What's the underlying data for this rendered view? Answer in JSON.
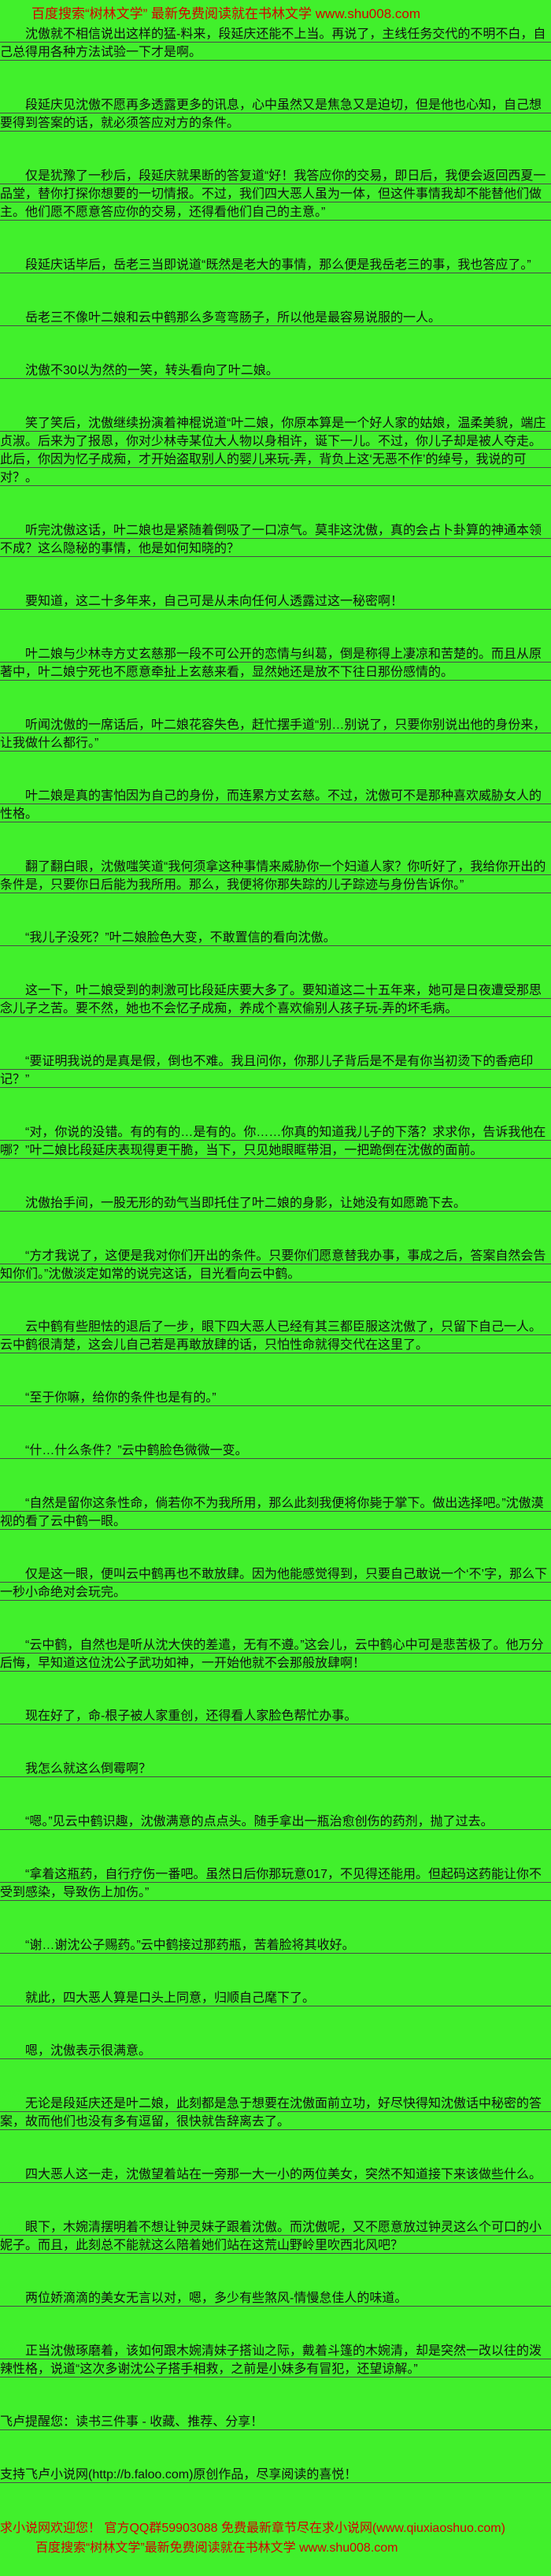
{
  "colors": {
    "background": "#41f02c",
    "promo_red": "#d40000",
    "body_text": "#111111",
    "underline": "#4a4a4a"
  },
  "header": {
    "text": "百度搜索“树林文学” 最新免费阅读就在书林文学 www.shu008.com"
  },
  "content": {
    "paragraphs": [
      "沈傲就不相信说出这样的猛-料来，段延庆还能不上当。再说了，主线任务交代的不明不白，自己总得用各种方法试验一下才是啊。",
      "段延庆见沈傲不愿再多透露更多的讯息，心中虽然又是焦急又是迫切，但是他也心知，自己想要得到答案的话，就必须答应对方的条件。",
      "仅是犹豫了一秒后，段延庆就果断的答复道“好！我答应你的交易，即日后，我便会返回西夏一品堂，替你打探你想要的一切情报。不过，我们四大恶人虽为一体，但这件事情我却不能替他们做主。他们愿不愿意答应你的交易，还得看他们自己的主意。”",
      "段延庆话毕后，岳老三当即说道“既然是老大的事情，那么便是我岳老三的事，我也答应了。”",
      "岳老三不像叶二娘和云中鹤那么多弯弯肠子，所以他是最容易说服的一人。",
      "沈傲不30以为然的一笑，转头看向了叶二娘。",
      "笑了笑后，沈傲继续扮演着神棍说道“叶二娘，你原本算是一个好人家的姑娘，温柔美貌，端庄贞淑。后来为了报恩，你对少林寺某位大人物以身相许，诞下一儿。不过，你儿子却是被人夺走。此后，你因为忆子成痴，才开始盗取别人的婴儿来玩-弄，背负上这‘无恶不作’的绰号，我说的可对？。",
      "听完沈傲这话，叶二娘也是紧随着倒吸了一口凉气。莫非这沈傲，真的会占卜卦算的神通本领不成？这么隐秘的事情，他是如何知晓的？",
      "要知道，这二十多年来，自己可是从未向任何人透露过这一秘密啊！",
      "叶二娘与少林寺方丈玄慈那一段不可公开的恋情与纠葛，倒是称得上凄凉和苦楚的。而且从原著中，叶二娘宁死也不愿意牵扯上玄慈来看，显然她还是放不下往日那份感情的。",
      "听闻沈傲的一席话后，叶二娘花容失色，赶忙摆手道“别…别说了，只要你别说出他的身份来，让我做什么都行。”",
      "叶二娘是真的害怕因为自己的身份，而连累方丈玄慈。不过，沈傲可不是那种喜欢威胁女人的性格。",
      "翻了翻白眼，沈傲嗤笑道“我何须拿这种事情来威胁你一个妇道人家？你听好了，我给你开出的条件是，只要你日后能为我所用。那么，我便将你那失踪的儿子踪迹与身份告诉你。”",
      "“我儿子没死？”叶二娘脸色大变，不敢置信的看向沈傲。",
      "这一下，叶二娘受到的刺激可比段延庆要大多了。要知道这二十五年来，她可是日夜遭受那思念儿子之苦。要不然，她也不会忆子成痴，养成个喜欢偷别人孩子玩-弄的坏毛病。",
      "“要证明我说的是真是假，倒也不难。我且问你，你那儿子背后是不是有你当初烫下的香疤印记？”",
      "“对，你说的没错。有的有的…是有的。你……你真的知道我儿子的下落？求求你，告诉我他在哪？”叶二娘比段延庆表现得更干脆，当下，只见她眼眶带泪，一把跪倒在沈傲的面前。",
      "沈傲抬手间，一股无形的劲气当即托住了叶二娘的身影，让她没有如愿跪下去。",
      "“方才我说了，这便是我对你们开出的条件。只要你们愿意替我办事，事成之后，答案自然会告知你们。”沈傲淡定如常的说完这话，目光看向云中鹤。",
      "云中鹤有些胆怯的退后了一步，眼下四大恶人已经有其三都臣服这沈傲了，只留下自己一人。云中鹤很清楚，这会儿自己若是再敢放肆的话，只怕性命就得交代在这里了。",
      "“至于你嘛，给你的条件也是有的。”",
      "“什…什么条件？”云中鹤脸色微微一变。",
      "“自然是留你这条性命，倘若你不为我所用，那么此刻我便将你毙于掌下。做出选择吧。”沈傲漠视的看了云中鹤一眼。",
      "仅是这一眼，便叫云中鹤再也不敢放肆。因为他能感觉得到，只要自己敢说一个‘不’字，那么下一秒小命绝对会玩完。",
      "“云中鹤，自然也是听从沈大侠的差遣，无有不遵。”这会儿，云中鹤心中可是悲苦极了。他万分后悔，早知道这位沈公子武功如神，一开始他就不会那般放肆啊！",
      "现在好了，命-根子被人家重创，还得看人家脸色帮忙办事。",
      "我怎么就这么倒霉啊？",
      "“嗯。”见云中鹤识趣，沈傲满意的点点头。随手拿出一瓶治愈创伤的药剂，抛了过去。",
      "“拿着这瓶药，自行疗伤一番吧。虽然日后你那玩意017，不见得还能用。但起码这药能让你不受到感染，导致伤上加伤。”",
      "“谢…谢沈公子赐药。”云中鹤接过那药瓶，苦着脸将其收好。",
      "就此，四大恶人算是口头上同意，归顺自己麾下了。",
      "嗯，沈傲表示很满意。",
      "无论是段延庆还是叶二娘，此刻都是急于想要在沈傲面前立功，好尽快得知沈傲话中秘密的答案，故而他们也没有多有逗留，很快就告辞离去了。",
      "四大恶人这一走，沈傲望着站在一旁那一大一小的两位美女，突然不知道接下来该做些什么。",
      "眼下，木婉清摆明着不想让钟灵妹子跟着沈傲。而沈傲呢，又不愿意放过钟灵这么个可口的小妮子。而且，此刻总不能就这么陪着她们站在这荒山野岭里吹西北风吧？",
      "两位娇滴滴的美女无言以对，嗯，多少有些煞风-情慢怠佳人的味道。",
      "正当沈傲琢磨着，该如何跟木婉清妹子搭讪之际，戴着斗篷的木婉清，却是突然一改以往的泼辣性格，说道“这次多谢沈公子搭手相救，之前是小妹多有冒犯，还望谅解。”"
    ],
    "notices": [
      "飞卢提醒您：读书三件事 - 收藏、推荐、分享！",
      "支持飞卢小说网(http://b.faloo.com)原创作品，尽享阅读的喜悦！"
    ]
  },
  "footer": {
    "red_lines": [
      "求小说网欢迎您！ 官方QQ群59903088 免费最新章节尽在求小说网(www.qiuxiaoshuo.com)",
      "百度搜索“树林文学”最新免费阅读就在书林文学 www.shu008.com"
    ]
  }
}
